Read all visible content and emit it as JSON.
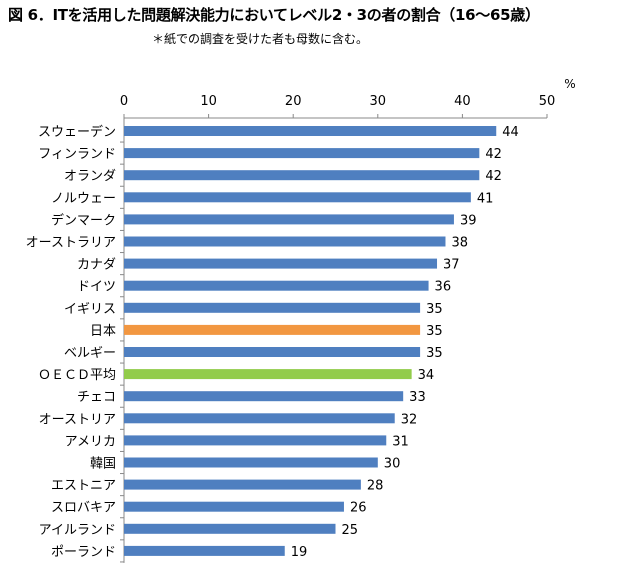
{
  "title": "図 6．ITを活用した問題解決能力においてレベル2・3の者の割合（16〜65歳）",
  "subtitle": "＊紙での調査を受けた者も母数に含む。",
  "chart_data": {
    "type": "bar",
    "orientation": "horizontal",
    "title": "図 6．ITを活用した問題解決能力においてレベル2・3の者の割合（16〜65歳）",
    "unit": "%",
    "xlim": [
      0,
      50
    ],
    "ticks": [
      0,
      10,
      20,
      30,
      40,
      50
    ],
    "grid": false,
    "categories": [
      "スウェーデン",
      "フィンランド",
      "オランダ",
      "ノルウェー",
      "デンマーク",
      "オーストラリア",
      "カナダ",
      "ドイツ",
      "イギリス",
      "日本",
      "ベルギー",
      "ＯＥＣＤ平均",
      "チェコ",
      "オーストリア",
      "アメリカ",
      "韓国",
      "エストニア",
      "スロバキア",
      "アイルランド",
      "ポーランド"
    ],
    "values": [
      44,
      42,
      42,
      41,
      39,
      38,
      37,
      36,
      35,
      35,
      35,
      34,
      33,
      32,
      31,
      30,
      28,
      26,
      25,
      19
    ],
    "colors": {
      "default": "#4f7fc0",
      "日本": "#f29741",
      "ＯＥＣＤ平均": "#92cc4a"
    }
  }
}
